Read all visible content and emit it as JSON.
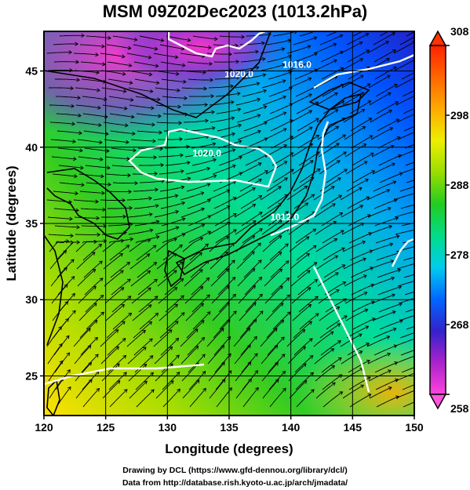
{
  "title": "MSM 09Z02Dec2023 (1013.2hPa)",
  "axes": {
    "xlabel": "Longitude (degrees)",
    "ylabel": "Latitude  (degrees)",
    "x_ticks": [
      120,
      125,
      130,
      135,
      140,
      145,
      150
    ],
    "y_ticks": [
      25,
      30,
      35,
      40,
      45
    ],
    "xlim": [
      120,
      150
    ],
    "ylim": [
      22.4,
      47.6
    ]
  },
  "colorbar": {
    "min": 258,
    "max": 308,
    "ticks": [
      258,
      268,
      278,
      288,
      298,
      308
    ],
    "colors": [
      "#ff44dd",
      "#aa22cc",
      "#3322cc",
      "#0066ff",
      "#00ccee",
      "#00dd88",
      "#22cc22",
      "#99dd00",
      "#eeee00",
      "#ffaa00",
      "#ff6600",
      "#ff2200"
    ]
  },
  "isobars": [
    {
      "label": "1020.0",
      "lon": 135.8,
      "lat": 44.6
    },
    {
      "label": "1020.0",
      "lon": 133.2,
      "lat": 39.4
    },
    {
      "label": "1016.0",
      "lon": 140.5,
      "lat": 45.2
    },
    {
      "label": "1012.0",
      "lon": 139.5,
      "lat": 35.2
    }
  ],
  "credits": {
    "line1": "Drawing by DCL (https://www.gfd-dennou.org/library/dcl/)",
    "line2": "Data from http://database.rish.kyoto-u.ac.jp/arch/jmadata/"
  }
}
